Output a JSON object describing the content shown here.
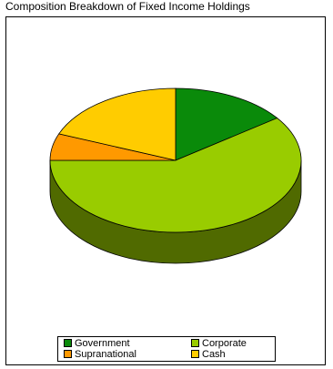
{
  "chart_data": {
    "type": "pie",
    "title": "Composition Breakdown of Fixed Income Holdings",
    "categories": [
      "Government",
      "Corporate",
      "Supranational",
      "Cash"
    ],
    "values": [
      15,
      60,
      6,
      19
    ],
    "colors": [
      "#0a8a0a",
      "#99cc00",
      "#ff9900",
      "#ffcc00"
    ],
    "style": "3d",
    "legend_position": "bottom"
  }
}
